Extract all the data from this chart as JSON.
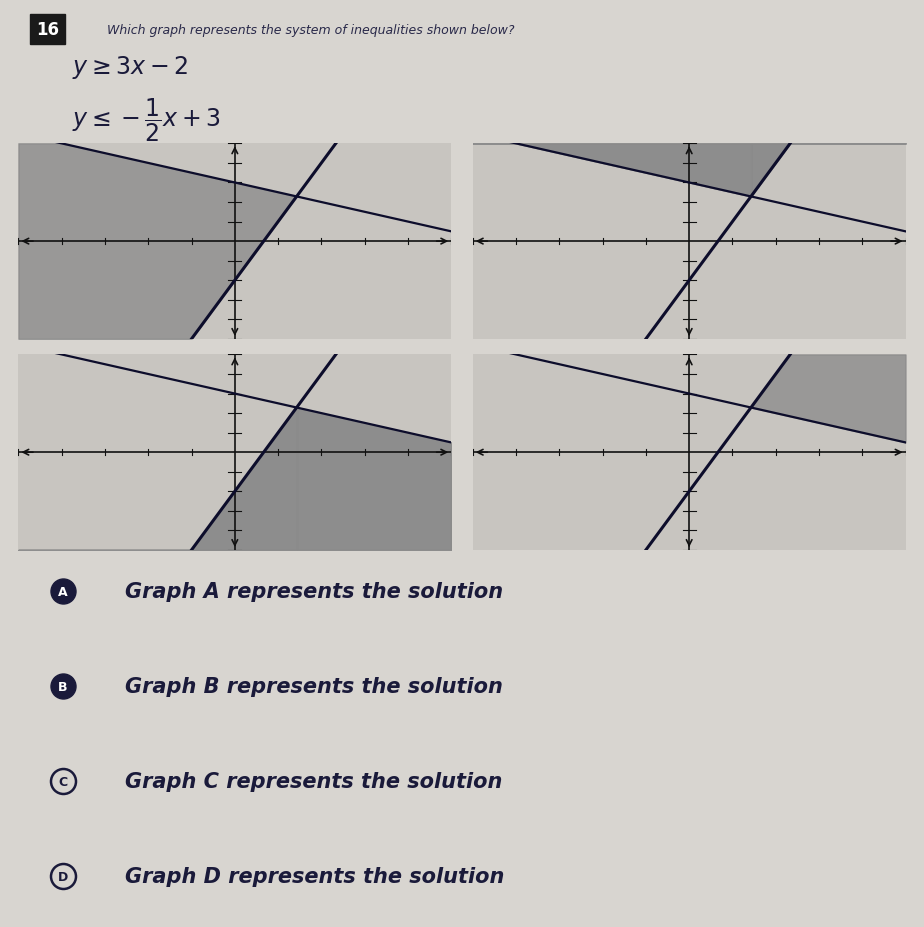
{
  "question_number": "16",
  "question_text": "Which graph represents the system of inequalities shown below?",
  "ineq1_text": "$y \\geq 3x - 2$",
  "ineq2_text": "$y \\leq -\\dfrac{1}{2}x + 3$",
  "answer_choices": [
    "Graph A represents the solution",
    "Graph B represents the solution",
    "Graph C represents the solution",
    "Graph D represents the solution"
  ],
  "answer_labels": [
    "A",
    "B",
    "C",
    "D"
  ],
  "answer_filled": [
    true,
    true,
    false,
    false
  ],
  "page_color": "#d8d5d0",
  "graph_bg": "#c8c5c0",
  "line1_slope": 3,
  "line1_intercept": -2,
  "line2_slope": -0.5,
  "line2_intercept": 3,
  "xlim": [
    -5,
    5
  ],
  "ylim": [
    -5,
    5
  ],
  "shade_configs": [
    {
      "above1": true,
      "below2": true,
      "label": "A"
    },
    {
      "above1": true,
      "below2": false,
      "label": "B"
    },
    {
      "above1": false,
      "below2": true,
      "label": "C"
    },
    {
      "above1": false,
      "below2": false,
      "label": "D"
    }
  ]
}
